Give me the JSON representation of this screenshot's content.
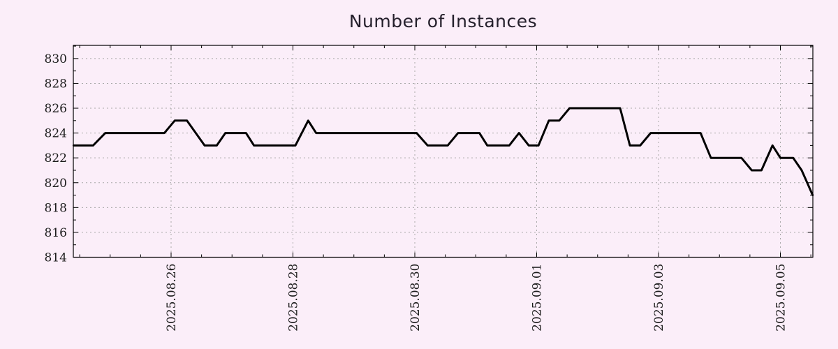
{
  "title": "Number of Instances",
  "colors": {
    "background": "#fbeef9",
    "series_line": "#000000",
    "grid": "#a8a8a8",
    "axis": "#000000",
    "tick_text": "#1c1c1c",
    "title_text": "#241f2b"
  },
  "chart_data": {
    "type": "line",
    "title": "Number of Instances",
    "legend": "none",
    "grid": "dotted, on major ticks",
    "x_axis": {
      "kind": "time",
      "epoch": "2025-08-24 00:00",
      "unit": "days since epoch",
      "range": [
        0.3954,
        12.533
      ],
      "major_ticks": [
        {
          "t": 2,
          "label": "2025.08.26"
        },
        {
          "t": 4,
          "label": "2025.08.28"
        },
        {
          "t": 6,
          "label": "2025.08.30"
        },
        {
          "t": 8,
          "label": "2025.09.01"
        },
        {
          "t": 10,
          "label": "2025.09.03"
        },
        {
          "t": 12,
          "label": "2025.09.05"
        }
      ],
      "minor_tick_step": 0.5,
      "label_rotation_deg": -90
    },
    "y_axis": {
      "range": [
        814,
        831.06
      ],
      "major_ticks": [
        814,
        816,
        818,
        820,
        822,
        824,
        826,
        828,
        830
      ],
      "minor_ticks": [
        815,
        817,
        819,
        821,
        823,
        825,
        827,
        829,
        831
      ]
    },
    "series": [
      {
        "name": "instances",
        "color": "#000000",
        "stroke_width": 3,
        "points": [
          [
            0.4,
            823
          ],
          [
            0.72,
            823
          ],
          [
            0.92,
            824
          ],
          [
            1.89,
            824
          ],
          [
            2.06,
            825
          ],
          [
            2.26,
            825
          ],
          [
            2.55,
            823
          ],
          [
            2.75,
            823
          ],
          [
            2.89,
            824
          ],
          [
            3.23,
            824
          ],
          [
            3.36,
            823
          ],
          [
            4.04,
            823
          ],
          [
            4.25,
            825
          ],
          [
            4.38,
            824
          ],
          [
            6.03,
            824
          ],
          [
            6.21,
            823
          ],
          [
            6.54,
            823
          ],
          [
            6.71,
            824
          ],
          [
            7.06,
            824
          ],
          [
            7.19,
            823
          ],
          [
            7.55,
            823
          ],
          [
            7.71,
            824
          ],
          [
            7.87,
            823
          ],
          [
            8.03,
            823
          ],
          [
            8.2,
            825
          ],
          [
            8.37,
            825
          ],
          [
            8.54,
            826
          ],
          [
            9.37,
            826
          ],
          [
            9.53,
            823
          ],
          [
            9.7,
            823
          ],
          [
            9.87,
            824
          ],
          [
            10.69,
            824
          ],
          [
            10.86,
            822
          ],
          [
            11.36,
            822
          ],
          [
            11.53,
            821
          ],
          [
            11.69,
            821
          ],
          [
            11.87,
            823
          ],
          [
            12.0,
            822
          ],
          [
            12.21,
            822
          ],
          [
            12.35,
            821
          ],
          [
            12.44,
            820
          ],
          [
            12.53,
            819
          ]
        ]
      }
    ]
  }
}
